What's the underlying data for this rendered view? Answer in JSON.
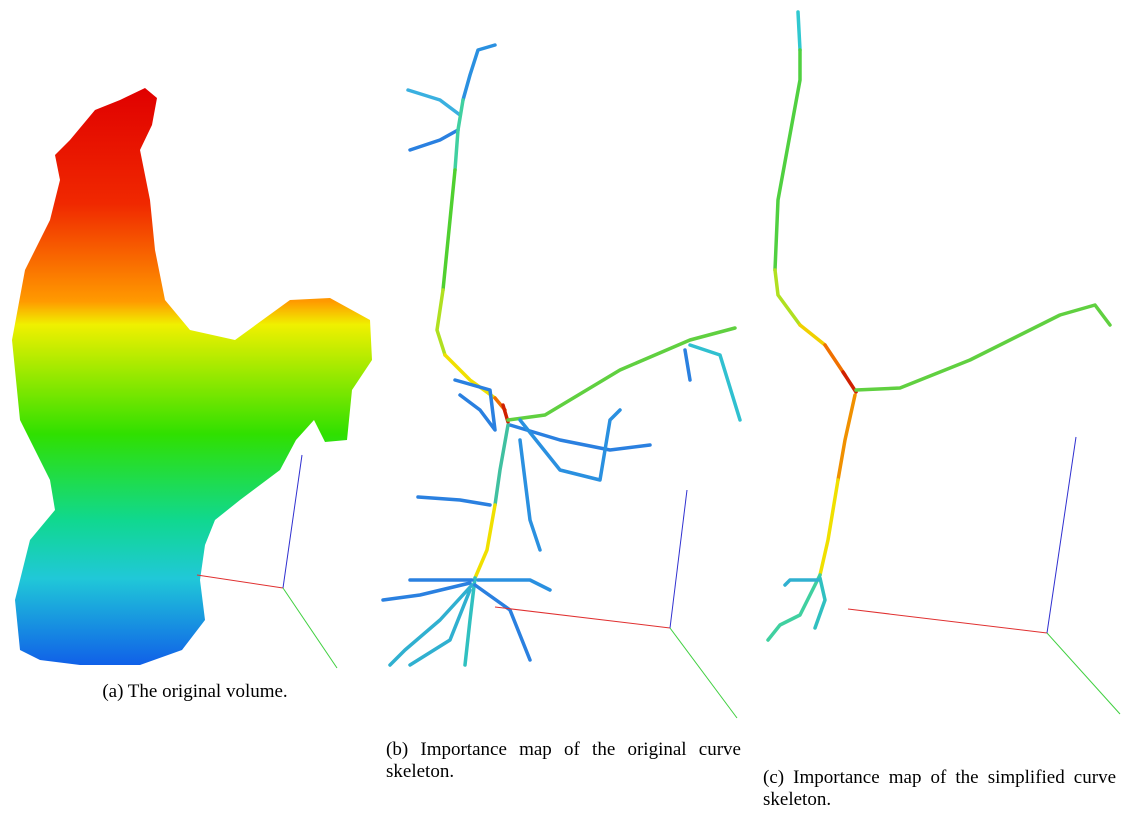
{
  "figure": {
    "subfigures": [
      {
        "caption": "(a) The original volume."
      },
      {
        "caption": "(b) Importance map of the original curve skeleton."
      },
      {
        "caption": "(c) Importance map of the simplified curve skeleton."
      }
    ]
  }
}
